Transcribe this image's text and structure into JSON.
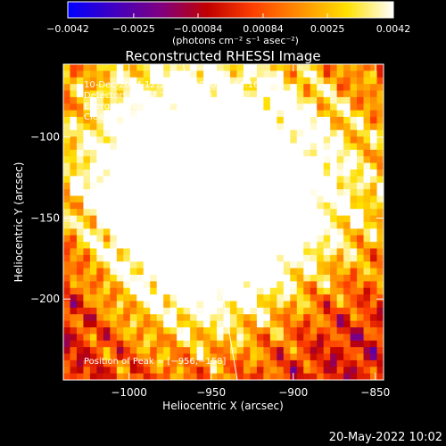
{
  "chart_data": {
    "type": "heatmap",
    "title": "Reconstructed RHESSI Image",
    "xlabel": "Heliocentric X (arcsec)",
    "ylabel": "Heliocentric Y (arcsec)",
    "xlim": [
      -1040,
      -845
    ],
    "ylim": [
      -250,
      -55
    ],
    "x_ticks": [
      {
        "value": -1000,
        "label": "−1000"
      },
      {
        "value": -950,
        "label": "−950"
      },
      {
        "value": -900,
        "label": "−900"
      },
      {
        "value": -850,
        "label": "−850"
      }
    ],
    "y_ticks": [
      {
        "value": -100,
        "label": "−100"
      },
      {
        "value": -150,
        "label": "−150"
      },
      {
        "value": -200,
        "label": "−200"
      }
    ],
    "colorbar": {
      "range": [
        -0.0042,
        0.0042
      ],
      "ticks": [
        {
          "value": -0.0042,
          "label": "−0.0042"
        },
        {
          "value": -0.0025,
          "label": "−0.0025"
        },
        {
          "value": -0.00084,
          "label": "−0.00084"
        },
        {
          "value": 0.00084,
          "label": "0.00084"
        },
        {
          "value": 0.0025,
          "label": "0.0025"
        },
        {
          "value": 0.0042,
          "label": "0.0042"
        }
      ],
      "unit_label": "(photons cm⁻² s⁻¹ asec⁻²)",
      "colors": [
        "#0000ff",
        "#4000c0",
        "#800080",
        "#c00000",
        "#ff4000",
        "#ff9000",
        "#ffe000",
        "#ffffff"
      ]
    },
    "info_lines": [
      "10-Dec-2014 12:52:28.000 to 12:54:16.000",
      "Detectors: 3F 6F 7F 9F, Att 0",
      "Energy Range: 6.0 - 12.0 keV",
      "Clean     Total counts: 4.76E+03"
    ],
    "peak_label": "Position of Peak = [−956,−158]",
    "peak": {
      "x": -956,
      "y": -158,
      "value": 0.0042
    },
    "secondary_sources": [
      {
        "x": -975,
        "y": -137,
        "value": 0.0034
      },
      {
        "x": -940,
        "y": -135,
        "value": 0.0026
      },
      {
        "x": -965,
        "y": -78,
        "value": 0.0022
      },
      {
        "x": -855,
        "y": -130,
        "value": 0.002
      }
    ],
    "limb_line": [
      {
        "x": -967,
        "y": -55
      },
      {
        "x": -934,
        "y": -250
      }
    ]
  },
  "footer": {
    "date": "20-May-2022 10:02"
  }
}
